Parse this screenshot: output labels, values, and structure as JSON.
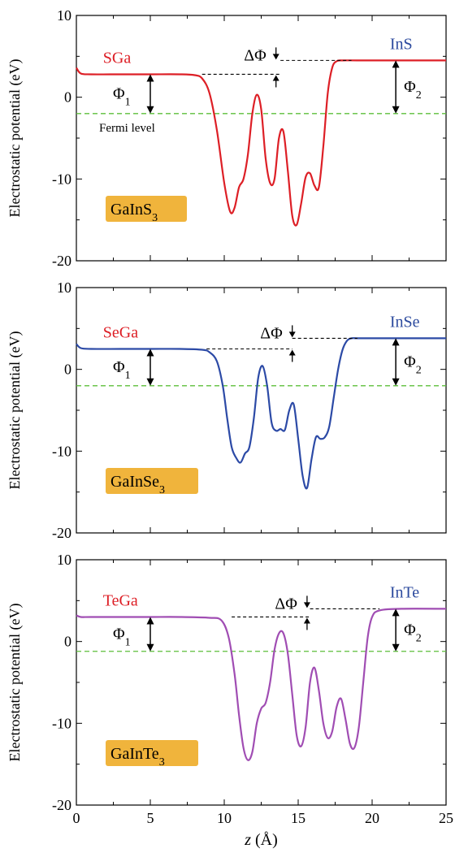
{
  "axis": {
    "ylabel": "Electrostatic potential (eV)",
    "xlabel_var": "z",
    "xlabel_unit": "(Å)",
    "xlim": [
      0,
      25
    ],
    "ylim": [
      -20,
      10
    ],
    "xticks": [
      0,
      5,
      10,
      15,
      20,
      25
    ],
    "yticks": [
      -20,
      -10,
      0,
      10
    ]
  },
  "annotations": {
    "phi1": "Φ",
    "phi1_sub": "1",
    "phi2": "Φ",
    "phi2_sub": "2",
    "delta_phi": "ΔΦ",
    "fermi_label": "Fermi level"
  },
  "chart_data": [
    {
      "type": "line",
      "badge": "GaInS",
      "badge_sub": "3",
      "left_label": "SGa",
      "right_label": "InS",
      "line_color": "#dd1f26",
      "left_label_color": "#dd1f26",
      "right_label_color": "#2c4a9e",
      "badge_color": "#f0b43c",
      "fermi_level": -2.0,
      "left_vacuum": 2.8,
      "right_vacuum": 4.5,
      "x": [
        0,
        0.3,
        1,
        3,
        5,
        7,
        8,
        8.5,
        9,
        9.5,
        10,
        10.4,
        10.7,
        11,
        11.3,
        11.6,
        11.9,
        12.2,
        12.5,
        12.8,
        13.1,
        13.4,
        13.7,
        14.0,
        14.3,
        14.6,
        14.9,
        15.2,
        15.5,
        15.8,
        16.1,
        16.4,
        16.7,
        17.0,
        17.3,
        17.6,
        18,
        19,
        21,
        23,
        25
      ],
      "y": [
        3.6,
        2.9,
        2.8,
        2.8,
        2.8,
        2.8,
        2.7,
        2.3,
        0.5,
        -4.0,
        -10.5,
        -14.0,
        -13.5,
        -11.0,
        -10.0,
        -7.0,
        -2.0,
        0.3,
        -1.5,
        -7.5,
        -10.5,
        -10.0,
        -5.0,
        -4.2,
        -9.0,
        -14.5,
        -15.6,
        -13.0,
        -9.8,
        -9.3,
        -10.8,
        -11.0,
        -6.0,
        0.5,
        3.6,
        4.4,
        4.5,
        4.5,
        4.5,
        4.5,
        4.5
      ]
    },
    {
      "type": "line",
      "badge": "GaInSe",
      "badge_sub": "3",
      "left_label": "SeGa",
      "right_label": "InSe",
      "line_color": "#2c4aa6",
      "left_label_color": "#dd1f26",
      "right_label_color": "#2c4a9e",
      "badge_color": "#f0b43c",
      "fermi_level": -2.0,
      "left_vacuum": 2.5,
      "right_vacuum": 3.8,
      "x": [
        0,
        0.3,
        1,
        3,
        5,
        7,
        8.5,
        9,
        9.5,
        9.9,
        10.2,
        10.5,
        10.8,
        11.1,
        11.4,
        11.7,
        12.0,
        12.3,
        12.6,
        12.9,
        13.2,
        13.5,
        13.8,
        14.1,
        14.4,
        14.7,
        15.0,
        15.3,
        15.6,
        15.9,
        16.2,
        16.5,
        16.8,
        17.1,
        17.4,
        17.7,
        18.0,
        18.3,
        18.6,
        19,
        20,
        22,
        25
      ],
      "y": [
        3.1,
        2.6,
        2.5,
        2.5,
        2.5,
        2.5,
        2.4,
        2.1,
        1.0,
        -2.0,
        -6.0,
        -9.5,
        -10.8,
        -11.4,
        -10.3,
        -9.5,
        -6.0,
        -1.0,
        0.4,
        -2.0,
        -6.5,
        -7.5,
        -7.3,
        -7.4,
        -5.0,
        -4.3,
        -8.5,
        -13.0,
        -14.5,
        -11.0,
        -8.3,
        -8.5,
        -8.3,
        -7.0,
        -3.5,
        0.0,
        2.4,
        3.5,
        3.8,
        3.8,
        3.8,
        3.8,
        3.8
      ]
    },
    {
      "type": "line",
      "badge": "GaInTe",
      "badge_sub": "3",
      "left_label": "TeGa",
      "right_label": "InTe",
      "line_color": "#a04db3",
      "left_label_color": "#dd1f26",
      "right_label_color": "#2c4a9e",
      "badge_color": "#f0b43c",
      "fermi_level": -1.2,
      "left_vacuum": 3.0,
      "right_vacuum": 4.0,
      "x": [
        0,
        0.3,
        1,
        3,
        5,
        7,
        9,
        9.8,
        10.3,
        10.7,
        11.0,
        11.3,
        11.6,
        11.9,
        12.2,
        12.5,
        12.8,
        13.1,
        13.4,
        13.7,
        14.0,
        14.3,
        14.6,
        14.9,
        15.2,
        15.5,
        15.8,
        16.1,
        16.4,
        16.7,
        17.0,
        17.3,
        17.6,
        17.9,
        18.2,
        18.5,
        18.8,
        19.1,
        19.4,
        19.7,
        20.0,
        20.5,
        22,
        25
      ],
      "y": [
        3.2,
        3.0,
        3.0,
        3.0,
        3.0,
        3.0,
        2.9,
        2.6,
        0.5,
        -4.0,
        -9.0,
        -13.0,
        -14.5,
        -13.5,
        -10.0,
        -8.2,
        -7.5,
        -5.0,
        -1.0,
        1.0,
        1.0,
        -1.5,
        -6.5,
        -11.5,
        -12.8,
        -10.5,
        -5.0,
        -3.2,
        -6.0,
        -10.0,
        -11.8,
        -11.0,
        -8.0,
        -7.0,
        -9.5,
        -12.5,
        -13.0,
        -10.5,
        -5.0,
        0.5,
        3.0,
        3.8,
        4.0,
        4.0
      ]
    }
  ]
}
